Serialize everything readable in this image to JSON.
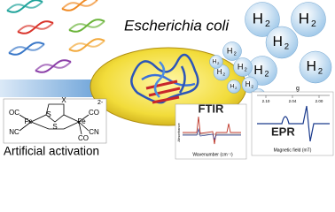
{
  "organism": "Escherichia coli",
  "hydrogen": [
    {
      "element": "H",
      "count": "2"
    },
    {
      "element": "H",
      "count": "2"
    },
    {
      "element": "H",
      "count": "2"
    },
    {
      "element": "H",
      "count": "2"
    },
    {
      "element": "H",
      "count": "2"
    },
    {
      "element": "H",
      "count": "2"
    },
    {
      "element": "H",
      "count": "2"
    },
    {
      "element": "H",
      "count": "2"
    },
    {
      "element": "H",
      "count": "2"
    },
    {
      "element": "H",
      "count": "2"
    },
    {
      "element": "H",
      "count": "2"
    },
    {
      "element": "H",
      "count": "2"
    }
  ],
  "complex": {
    "labels": [
      "X",
      "S",
      "S",
      "OC",
      "NC",
      "Fe",
      "Fe",
      "CO",
      "CN",
      "CO"
    ],
    "charge": "2-"
  },
  "caption": "Artificial activation",
  "ftir": {
    "title": "FTIR",
    "y_label": "Absorbance",
    "x_label": "Wavenumber (cm⁻¹)"
  },
  "epr": {
    "title": "EPR",
    "x_label": "Magnetic field (mT)",
    "g_label": "g",
    "g_ticks": [
      "2.10",
      "2.04",
      "2.00"
    ]
  }
}
